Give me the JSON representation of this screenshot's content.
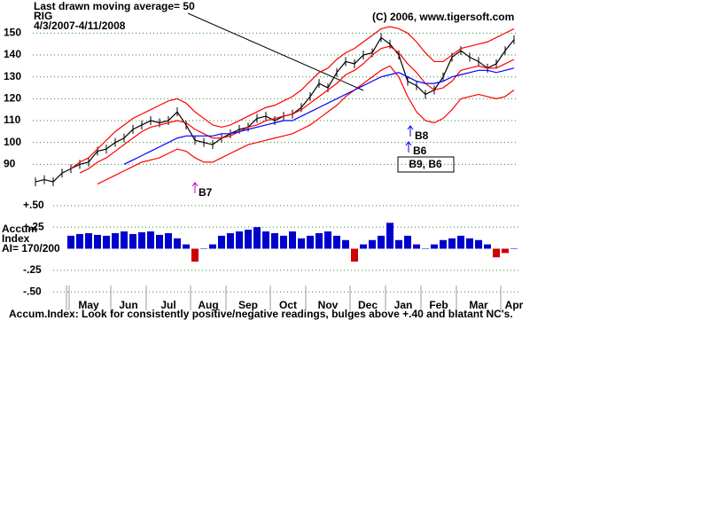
{
  "header": {
    "note": "Last drawn moving average= 50",
    "symbol": "RIG",
    "dates": "4/3/2007-4/11/2008",
    "copyright": "(C) 2006, www.tigersoft.com",
    "accum_label": "Accum\nIndex",
    "ai": "AI= 170/200",
    "footnote": "Accum.Index: Look for consistently positive/negative readings, bulges above +.40 and blatant NC's."
  },
  "chart_data": [
    {
      "type": "line",
      "ylim": [
        80,
        153
      ],
      "yticks": [
        90,
        100,
        110,
        120,
        130,
        140,
        150
      ],
      "grid": true,
      "annotations": [
        "B7",
        "B8",
        "B6",
        "B9, B6"
      ],
      "series": [
        {
          "name": "Price",
          "color": "#000000",
          "values": [
            82,
            83,
            82,
            86,
            88,
            90,
            91,
            96,
            97,
            100,
            102,
            106,
            108,
            110,
            109,
            110,
            114,
            108,
            101,
            100,
            99,
            102,
            104,
            106,
            107,
            111,
            112,
            110,
            112,
            113,
            116,
            121,
            127,
            125,
            132,
            137,
            136,
            140,
            141,
            148,
            145,
            140,
            128,
            126,
            122,
            124,
            130,
            139,
            142,
            139,
            137,
            134,
            136,
            142,
            147
          ]
        },
        {
          "name": "Upper band",
          "color": "#ff0000",
          "values": [
            null,
            null,
            null,
            null,
            88,
            91,
            93,
            97,
            101,
            105,
            108,
            111,
            113,
            115,
            117,
            119,
            120,
            118,
            114,
            111,
            108,
            107,
            108,
            110,
            112,
            114,
            116,
            117,
            119,
            121,
            124,
            128,
            132,
            134,
            138,
            141,
            143,
            146,
            149,
            152,
            153,
            152,
            150,
            146,
            141,
            137,
            137,
            140,
            143,
            144,
            145,
            146,
            148,
            150,
            152
          ]
        },
        {
          "name": "21-day MA",
          "color": "#ff0000",
          "values": [
            null,
            null,
            null,
            null,
            null,
            86,
            88,
            91,
            93,
            96,
            99,
            102,
            105,
            107,
            108,
            109,
            110,
            109,
            106,
            104,
            102,
            102,
            103,
            105,
            107,
            108,
            110,
            111,
            112,
            113,
            115,
            118,
            121,
            124,
            127,
            131,
            133,
            136,
            140,
            143,
            144,
            141,
            136,
            132,
            127,
            124,
            125,
            128,
            133,
            134,
            135,
            134,
            134,
            136,
            138
          ]
        },
        {
          "name": "Lower band",
          "color": "#ff0000",
          "values": [
            null,
            null,
            null,
            null,
            null,
            null,
            null,
            81,
            83,
            85,
            87,
            89,
            91,
            92,
            93,
            95,
            97,
            96,
            93,
            91,
            91,
            93,
            95,
            97,
            99,
            100,
            101,
            102,
            103,
            104,
            106,
            108,
            111,
            114,
            117,
            121,
            124,
            127,
            130,
            133,
            135,
            130,
            121,
            114,
            110,
            109,
            111,
            115,
            120,
            121,
            122,
            121,
            120,
            121,
            124
          ]
        },
        {
          "name": "50-day MA",
          "color": "#0000ff",
          "values": [
            null,
            null,
            null,
            null,
            null,
            null,
            null,
            null,
            null,
            null,
            90,
            92,
            94,
            96,
            98,
            100,
            102,
            103,
            103,
            103,
            103,
            104,
            104,
            105,
            106,
            107,
            108,
            109,
            110,
            110,
            112,
            114,
            116,
            118,
            120,
            122,
            124,
            126,
            128,
            130,
            131,
            132,
            130,
            128,
            127,
            127,
            128,
            130,
            131,
            132,
            133,
            133,
            132,
            133,
            134
          ]
        }
      ]
    },
    {
      "type": "bar",
      "ylim": [
        -0.56,
        0.57
      ],
      "yticks": [
        {
          "value": 0.5,
          "label": "+.50"
        },
        {
          "value": 0.25,
          "label": "+.25"
        },
        {
          "value": -0.25,
          "label": "-.25"
        },
        {
          "value": -0.5,
          "label": "-.50"
        }
      ],
      "grid": true,
      "color": "#0000cc",
      "negative_color": "#cc0000",
      "categories": [
        null,
        null,
        null,
        null,
        "May",
        null,
        null,
        null,
        null,
        "Jun",
        null,
        null,
        null,
        "Jul",
        null,
        null,
        null,
        null,
        "Aug",
        null,
        null,
        null,
        "Sep",
        null,
        null,
        null,
        null,
        "Oct",
        null,
        null,
        null,
        "Nov",
        null,
        null,
        null,
        null,
        "Dec",
        null,
        null,
        null,
        "Jan",
        null,
        null,
        null,
        "Feb",
        null,
        null,
        null,
        "Mar",
        null,
        null,
        null,
        null,
        "Apr",
        null
      ],
      "values": [
        null,
        null,
        null,
        null,
        0.15,
        0.17,
        0.18,
        0.16,
        0.15,
        0.18,
        0.2,
        0.17,
        0.19,
        0.2,
        0.16,
        0.18,
        0.12,
        0.05,
        -0.15,
        0.0,
        0.05,
        0.15,
        0.18,
        0.2,
        0.22,
        0.25,
        0.2,
        0.18,
        0.15,
        0.2,
        0.12,
        0.15,
        0.18,
        0.2,
        0.15,
        0.1,
        -0.15,
        0.05,
        0.1,
        0.15,
        0.3,
        0.1,
        0.15,
        0.05,
        0.0,
        0.05,
        0.1,
        0.12,
        0.15,
        0.12,
        0.1,
        0.05,
        -0.1,
        -0.05,
        0.0
      ]
    }
  ]
}
